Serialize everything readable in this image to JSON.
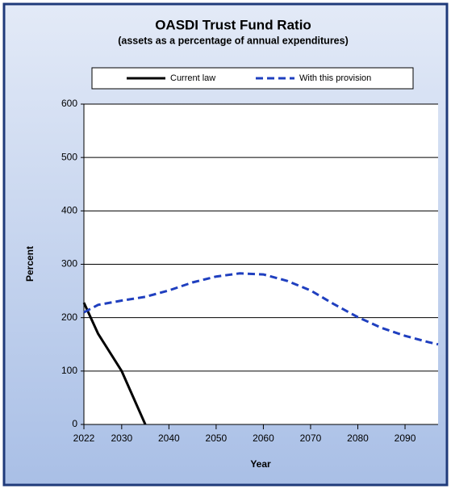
{
  "chart_data": {
    "type": "line",
    "title": "OASDI Trust Fund Ratio",
    "subtitle": "(assets as a percentage of annual expenditures)",
    "x_label": "Year",
    "y_label": "Percent",
    "x": [
      2022,
      2025,
      2030,
      2035,
      2040,
      2045,
      2050,
      2055,
      2060,
      2065,
      2070,
      2075,
      2080,
      2085,
      2090,
      2095,
      2097
    ],
    "series": [
      {
        "name": "Current law",
        "color": "#000000",
        "dash": false,
        "values": [
          228,
          170,
          100,
          0,
          null,
          null,
          null,
          null,
          null,
          null,
          null,
          null,
          null,
          null,
          null,
          null,
          null
        ]
      },
      {
        "name": "With this provision",
        "color": "#1f3fbf",
        "dash": true,
        "values": [
          210,
          224,
          232,
          239,
          251,
          266,
          277,
          283,
          281,
          269,
          251,
          225,
          201,
          181,
          166,
          154,
          150
        ]
      }
    ],
    "xlim": [
      2022,
      2097
    ],
    "xticks": [
      2022,
      2030,
      2040,
      2050,
      2060,
      2070,
      2080,
      2090
    ],
    "ylim": [
      0,
      600
    ],
    "yticks": [
      0,
      100,
      200,
      300,
      400,
      500,
      600
    ],
    "grid": true,
    "legend": "top"
  }
}
